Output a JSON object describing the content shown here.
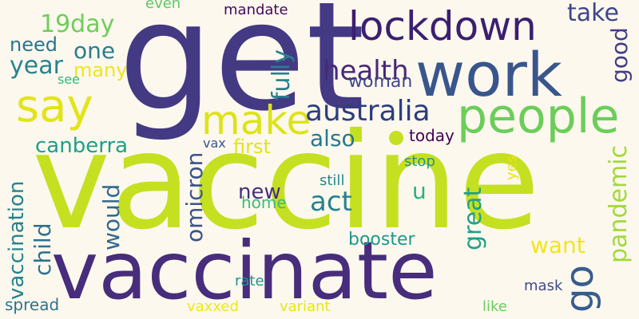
{
  "words": {
    "get": {
      "text": "get",
      "color": "#443983"
    },
    "vaccine": {
      "text": "vaccine",
      "color": "#c5e021"
    },
    "vaccinate": {
      "text": "vaccinate",
      "color": "#472d7b"
    },
    "work": {
      "text": "work",
      "color": "#39568c"
    },
    "people": {
      "text": "people",
      "color": "#6ccd5a"
    },
    "lockdown": {
      "text": "lockdown",
      "color": "#3b1f70"
    },
    "say": {
      "text": "say",
      "color": "#e3e418"
    },
    "make": {
      "text": "make",
      "color": "#dde318"
    },
    "australia": {
      "text": "australia",
      "color": "#2c3e80"
    },
    "health": {
      "text": "health",
      "color": "#482878"
    },
    "take": {
      "text": "take",
      "color": "#3f4788"
    },
    "good": {
      "text": "good",
      "color": "#433e85"
    },
    "one": {
      "text": "one",
      "color": "#2b7c8e"
    },
    "need": {
      "text": "need",
      "color": "#2a768e"
    },
    "year": {
      "text": "year",
      "color": "#25858e"
    },
    "19day": {
      "text": "19day",
      "color": "#6ece58"
    },
    "many": {
      "text": "many",
      "color": "#f0e51c"
    },
    "see": {
      "text": "see",
      "color": "#35b779"
    },
    "woman": {
      "text": "woman",
      "color": "#404688"
    },
    "fully": {
      "text": "fully",
      "color": "#27808e"
    },
    "even": {
      "text": "even",
      "color": "#5ec962"
    },
    "mandate": {
      "text": "mandate",
      "color": "#46085c"
    },
    "canberra": {
      "text": "canberra",
      "color": "#1f9f88"
    },
    "first": {
      "text": "first",
      "color": "#e2e418"
    },
    "also": {
      "text": "also",
      "color": "#2a768e"
    },
    "today": {
      "text": "today",
      "color": "#440154"
    },
    "pandemic": {
      "text": "pandemic",
      "color": "#a0da39"
    },
    "vax": {
      "text": "vax",
      "color": "#39568c"
    },
    "omicron": {
      "text": "omicron",
      "color": "#3b528b"
    },
    "stop": {
      "text": "stop",
      "color": "#1f968b"
    },
    "still": {
      "text": "still",
      "color": "#238a8d"
    },
    "yes": {
      "text": "yes",
      "color": "#e6e419"
    },
    "new": {
      "text": "new",
      "color": "#472e7c"
    },
    "act": {
      "text": "act",
      "color": "#25838e"
    },
    "u": {
      "text": "u",
      "color": "#29af7f"
    },
    "home": {
      "text": "home",
      "color": "#3dbc74"
    },
    "vaccination": {
      "text": "vaccination",
      "color": "#26828e"
    },
    "child": {
      "text": "child",
      "color": "#2d708e"
    },
    "would": {
      "text": "would",
      "color": "#31688e"
    },
    "great": {
      "text": "great",
      "color": "#1fa088"
    },
    "want": {
      "text": "want",
      "color": "#f1e51d"
    },
    "booster": {
      "text": "booster",
      "color": "#1f988b"
    },
    "go": {
      "text": "go",
      "color": "#365d8d"
    },
    "rate": {
      "text": "rate",
      "color": "#20938c"
    },
    "mask": {
      "text": "mask",
      "color": "#3e4a89"
    },
    "spread": {
      "text": "spread",
      "color": "#2c738e"
    },
    "vaxxed": {
      "text": "vaxxed",
      "color": "#f1e51d"
    },
    "variant": {
      "text": "variant",
      "color": "#e8e419"
    },
    "like": {
      "text": "like",
      "color": "#67cc5c"
    }
  },
  "dot_color": "#c5e021"
}
